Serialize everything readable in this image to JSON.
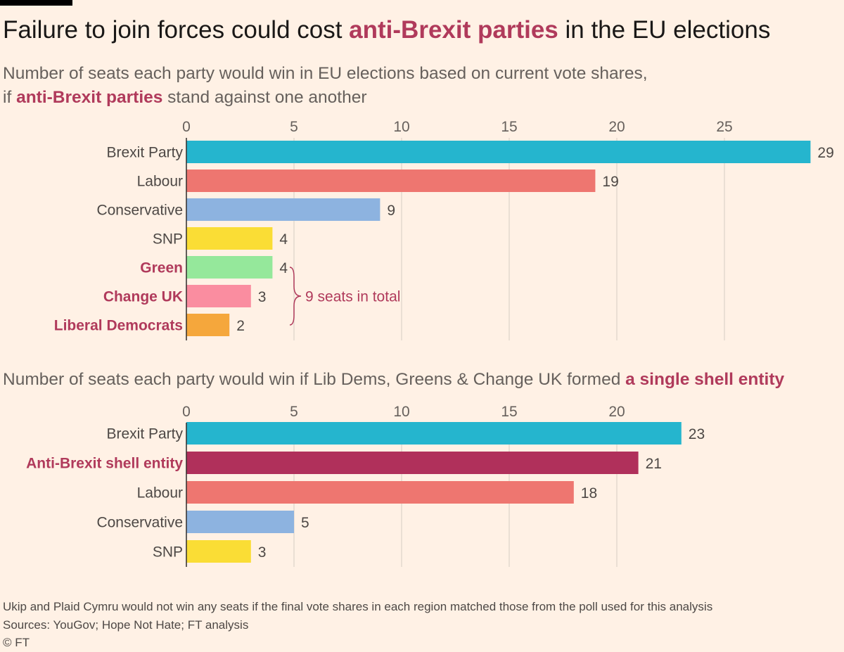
{
  "title": {
    "pre": "Failure to join forces could cost ",
    "highlight": "anti-Brexit parties",
    "post": " in the EU elections"
  },
  "subtitle1": {
    "pre": "Number of seats each party would win in EU elections based on current vote shares,",
    "line2_pre": "if ",
    "highlight": "anti-Brexit parties",
    "post": " stand against one another"
  },
  "subtitle2": {
    "pre": "Number of seats each party would win if Lib Dems, Greens & Change UK formed ",
    "highlight": "a single shell entity"
  },
  "colors": {
    "background": "#fff1e5",
    "highlight": "#b03a5b",
    "gridline": "#e3d9cf"
  },
  "chart_data": [
    {
      "type": "bar",
      "orientation": "horizontal",
      "xlim": [
        0,
        29
      ],
      "ticks": [
        0,
        5,
        10,
        15,
        20,
        25
      ],
      "categories": [
        "Brexit Party",
        "Labour",
        "Conservative",
        "SNP",
        "Green",
        "Change UK",
        "Liberal Democrats"
      ],
      "values": [
        29,
        19,
        9,
        4,
        4,
        3,
        2
      ],
      "colors": [
        "#25b5ce",
        "#ee7670",
        "#8db3e0",
        "#fadd35",
        "#95e89b",
        "#fa8da0",
        "#f5a73c"
      ],
      "highlighted": [
        false,
        false,
        false,
        false,
        true,
        true,
        true
      ],
      "annotation": {
        "text": "9 seats in total",
        "spans": [
          "Green",
          "Change UK",
          "Liberal Democrats"
        ]
      }
    },
    {
      "type": "bar",
      "orientation": "horizontal",
      "xlim": [
        0,
        23
      ],
      "ticks": [
        0,
        5,
        10,
        15,
        20
      ],
      "categories": [
        "Brexit Party",
        "Anti-Brexit shell entity",
        "Labour",
        "Conservative",
        "SNP"
      ],
      "values": [
        23,
        21,
        18,
        5,
        3
      ],
      "colors": [
        "#25b5ce",
        "#b0305b",
        "#ee7670",
        "#8db3e0",
        "#fadd35"
      ],
      "highlighted": [
        false,
        true,
        false,
        false,
        false
      ]
    }
  ],
  "footer": {
    "note": "Ukip and Plaid Cymru would not win any seats if the final vote shares in each region matched those from the poll used for this analysis",
    "sources": "Sources: YouGov; Hope Not Hate; FT analysis",
    "credit": "© FT"
  }
}
